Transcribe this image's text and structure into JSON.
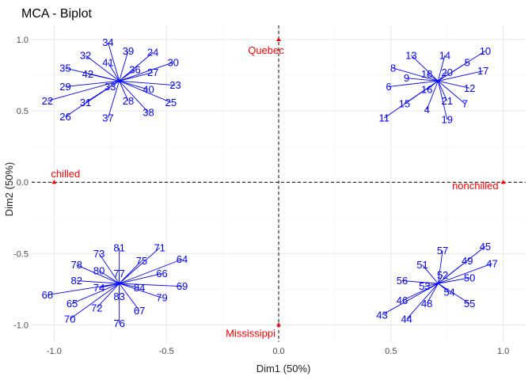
{
  "chart_data": {
    "type": "scatter",
    "title": "MCA - Biplot",
    "xlabel": "Dim1 (50%)",
    "ylabel": "Dim2 (50%)",
    "xlim": [
      -1.1,
      1.1
    ],
    "ylim": [
      -1.12,
      1.1
    ],
    "xticks": [
      -1.0,
      -0.5,
      0.0,
      0.5,
      1.0
    ],
    "xtick_labels": [
      "-1.0",
      "-0.5",
      "0.0",
      "0.5",
      "1.0"
    ],
    "yticks": [
      -1.0,
      -0.5,
      0.0,
      0.5,
      1.0
    ],
    "ytick_labels": [
      "-1.0",
      "-0.5",
      "0.0",
      "0.5",
      "1.0"
    ],
    "grid": true,
    "reference_lines": {
      "x": 0,
      "y": 0
    },
    "colors": {
      "individuals": "#0000ff",
      "variables": "#ff0000"
    },
    "variables": [
      {
        "label": "Quebec",
        "x": 0.0,
        "y": 1.0
      },
      {
        "label": "chilled",
        "x": -1.0,
        "y": 0.0
      },
      {
        "label": "nonchilled",
        "x": 1.0,
        "y": 0.0
      },
      {
        "label": "Mississippi",
        "x": 0.0,
        "y": -1.0
      }
    ],
    "individual_groups": [
      {
        "centroid": [
          -0.71,
          0.71
        ],
        "labels": [
          {
            "label": "22",
            "x": -1.03,
            "y": 0.57
          },
          {
            "label": "23",
            "x": -0.46,
            "y": 0.68
          },
          {
            "label": "24",
            "x": -0.56,
            "y": 0.91
          },
          {
            "label": "25",
            "x": -0.48,
            "y": 0.56
          },
          {
            "label": "26",
            "x": -0.95,
            "y": 0.46
          },
          {
            "label": "27",
            "x": -0.56,
            "y": 0.77
          },
          {
            "label": "28",
            "x": -0.67,
            "y": 0.57
          },
          {
            "label": "29",
            "x": -0.95,
            "y": 0.67
          },
          {
            "label": "30",
            "x": -0.47,
            "y": 0.84
          },
          {
            "label": "31",
            "x": -0.86,
            "y": 0.56
          },
          {
            "label": "32",
            "x": -0.86,
            "y": 0.89
          },
          {
            "label": "33",
            "x": -0.75,
            "y": 0.67
          },
          {
            "label": "34",
            "x": -0.76,
            "y": 0.98
          },
          {
            "label": "35",
            "x": -0.95,
            "y": 0.8
          },
          {
            "label": "36",
            "x": -0.64,
            "y": 0.79
          },
          {
            "label": "37",
            "x": -0.76,
            "y": 0.45
          },
          {
            "label": "38",
            "x": -0.58,
            "y": 0.49
          },
          {
            "label": "39",
            "x": -0.67,
            "y": 0.92
          },
          {
            "label": "40",
            "x": -0.58,
            "y": 0.65
          },
          {
            "label": "41",
            "x": -0.76,
            "y": 0.84
          },
          {
            "label": "42",
            "x": -0.85,
            "y": 0.76
          }
        ]
      },
      {
        "centroid": [
          0.71,
          0.71
        ],
        "labels": [
          {
            "label": "4",
            "x": 0.66,
            "y": 0.51
          },
          {
            "label": "5",
            "x": 0.84,
            "y": 0.84
          },
          {
            "label": "6",
            "x": 0.49,
            "y": 0.67
          },
          {
            "label": "7",
            "x": 0.83,
            "y": 0.55
          },
          {
            "label": "8",
            "x": 0.51,
            "y": 0.8
          },
          {
            "label": "9",
            "x": 0.57,
            "y": 0.73
          },
          {
            "label": "10",
            "x": 0.92,
            "y": 0.92
          },
          {
            "label": "11",
            "x": 0.47,
            "y": 0.45
          },
          {
            "label": "12",
            "x": 0.85,
            "y": 0.66
          },
          {
            "label": "13",
            "x": 0.59,
            "y": 0.89
          },
          {
            "label": "14",
            "x": 0.74,
            "y": 0.89
          },
          {
            "label": "15",
            "x": 0.56,
            "y": 0.55
          },
          {
            "label": "16",
            "x": 0.66,
            "y": 0.65
          },
          {
            "label": "17",
            "x": 0.91,
            "y": 0.78
          },
          {
            "label": "18",
            "x": 0.66,
            "y": 0.76
          },
          {
            "label": "19",
            "x": 0.75,
            "y": 0.44
          },
          {
            "label": "20",
            "x": 0.75,
            "y": 0.77
          },
          {
            "label": "21",
            "x": 0.75,
            "y": 0.57
          }
        ]
      },
      {
        "centroid": [
          -0.71,
          -0.71
        ],
        "labels": [
          {
            "label": "64",
            "x": -0.43,
            "y": -0.54
          },
          {
            "label": "65",
            "x": -0.92,
            "y": -0.85
          },
          {
            "label": "66",
            "x": -0.52,
            "y": -0.64
          },
          {
            "label": "67",
            "x": -0.62,
            "y": -0.9
          },
          {
            "label": "68",
            "x": -1.03,
            "y": -0.79
          },
          {
            "label": "69",
            "x": -0.43,
            "y": -0.73
          },
          {
            "label": "70",
            "x": -0.93,
            "y": -0.96
          },
          {
            "label": "71",
            "x": -0.53,
            "y": -0.46
          },
          {
            "label": "72",
            "x": -0.81,
            "y": -0.88
          },
          {
            "label": "73",
            "x": -0.8,
            "y": -0.5
          },
          {
            "label": "74",
            "x": -0.8,
            "y": -0.74
          },
          {
            "label": "75",
            "x": -0.61,
            "y": -0.55
          },
          {
            "label": "76",
            "x": -0.71,
            "y": -0.99
          },
          {
            "label": "77",
            "x": -0.71,
            "y": -0.64
          },
          {
            "label": "78",
            "x": -0.9,
            "y": -0.58
          },
          {
            "label": "79",
            "x": -0.52,
            "y": -0.81
          },
          {
            "label": "80",
            "x": -0.8,
            "y": -0.62
          },
          {
            "label": "81",
            "x": -0.71,
            "y": -0.46
          },
          {
            "label": "82",
            "x": -0.9,
            "y": -0.69
          },
          {
            "label": "83",
            "x": -0.71,
            "y": -0.8
          },
          {
            "label": "84",
            "x": -0.62,
            "y": -0.74
          }
        ]
      },
      {
        "centroid": [
          0.71,
          -0.71
        ],
        "labels": [
          {
            "label": "43",
            "x": 0.46,
            "y": -0.93
          },
          {
            "label": "44",
            "x": 0.57,
            "y": -0.96
          },
          {
            "label": "45",
            "x": 0.92,
            "y": -0.45
          },
          {
            "label": "46",
            "x": 0.55,
            "y": -0.83
          },
          {
            "label": "47",
            "x": 0.95,
            "y": -0.57
          },
          {
            "label": "48",
            "x": 0.66,
            "y": -0.85
          },
          {
            "label": "49",
            "x": 0.84,
            "y": -0.55
          },
          {
            "label": "50",
            "x": 0.85,
            "y": -0.67
          },
          {
            "label": "51",
            "x": 0.64,
            "y": -0.58
          },
          {
            "label": "52",
            "x": 0.73,
            "y": -0.65
          },
          {
            "label": "53",
            "x": 0.65,
            "y": -0.73
          },
          {
            "label": "54",
            "x": 0.76,
            "y": -0.77
          },
          {
            "label": "55",
            "x": 0.85,
            "y": -0.85
          },
          {
            "label": "56",
            "x": 0.55,
            "y": -0.69
          },
          {
            "label": "57",
            "x": 0.73,
            "y": -0.48
          }
        ]
      }
    ]
  }
}
